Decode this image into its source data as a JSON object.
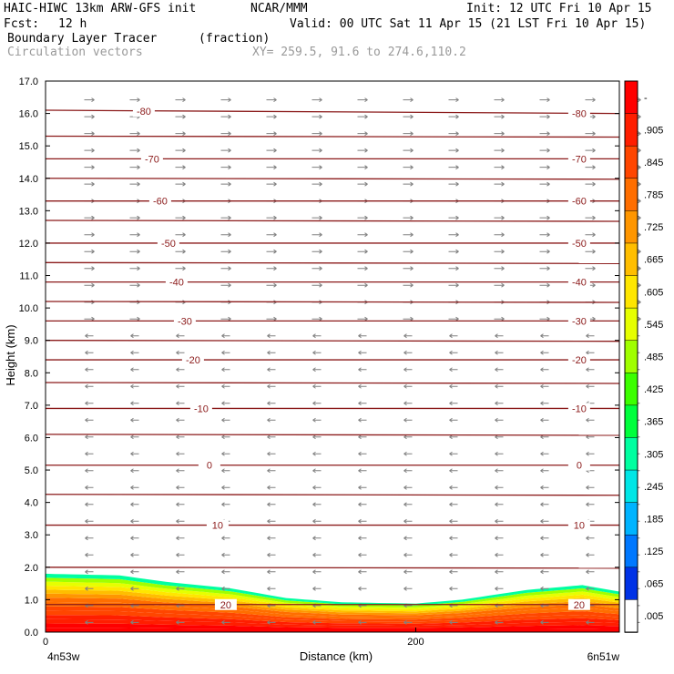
{
  "header": {
    "title_left": "HAIC-HIWC 13km ARW-GFS init",
    "org": "NCAR/MMM",
    "init": "Init: 12 UTC Fri 10 Apr 15",
    "fcst_label": "Fcst:",
    "fcst_value": "12 h",
    "valid": "Valid: 00 UTC Sat 11 Apr 15 (21 LST Fri 10 Apr 15)",
    "field_name": "Boundary Layer Tracer",
    "field_units": "(fraction)",
    "vector_label": "Circulation vectors",
    "xy_label": "XY= 259.5, 91.6 to 274.6,110.2"
  },
  "colors": {
    "contour": "#8b1a1a",
    "vector": "#808080",
    "dim_text": "#9a9a9a"
  },
  "chart_data": {
    "type": "heatmap",
    "xlabel": "Distance (km)",
    "ylabel": "Height (km)",
    "xlim": [
      0,
      310
    ],
    "ylim": [
      0,
      17
    ],
    "xticks": [
      0,
      200
    ],
    "yticks": [
      "0.0",
      "1.0",
      "2.0",
      "3.0",
      "4.0",
      "5.0",
      "6.0",
      "7.0",
      "8.0",
      "9.0",
      "10.0",
      "11.0",
      "12.0",
      "13.0",
      "14.0",
      "15.0",
      "16.0",
      "17.0"
    ],
    "x_endpoint_left": "4n53w",
    "x_endpoint_right": "6n51w",
    "colorbar": {
      "labels": [
        "-",
        ".905",
        ".845",
        ".785",
        ".725",
        ".665",
        ".605",
        ".545",
        ".485",
        ".425",
        ".365",
        ".305",
        ".245",
        ".185",
        ".125",
        ".065",
        ".005"
      ],
      "colors": [
        "#ff0000",
        "#ff1e00",
        "#ff4600",
        "#ff6e00",
        "#ff9600",
        "#ffbe00",
        "#ffe600",
        "#e6ff00",
        "#a0ff00",
        "#3cff00",
        "#00ff3c",
        "#00ffa0",
        "#00e6e6",
        "#00b4ff",
        "#0078ff",
        "#0032e6",
        "#ffffff"
      ]
    },
    "temperature_contours": [
      {
        "value": -80,
        "label": "-80",
        "heights": [
          16.1,
          16.0
        ]
      },
      {
        "value": -70,
        "label": "-70",
        "heights": [
          14.6,
          14.6
        ]
      },
      {
        "value": -60,
        "label": "-60",
        "heights": [
          13.3,
          13.3
        ]
      },
      {
        "value": -50,
        "label": "-50",
        "heights": [
          12.0,
          12.0
        ]
      },
      {
        "value": -40,
        "label": "-40",
        "heights": [
          10.8,
          10.8
        ]
      },
      {
        "value": -30,
        "label": "-30",
        "heights": [
          9.6,
          9.6
        ]
      },
      {
        "value": -20,
        "label": "-20",
        "heights": [
          8.4,
          8.4
        ]
      },
      {
        "value": -10,
        "label": "-10",
        "heights": [
          6.9,
          6.9
        ]
      },
      {
        "value": 0,
        "label": "0",
        "heights": [
          5.15,
          5.15
        ]
      },
      {
        "value": 10,
        "label": "10",
        "heights": [
          3.3,
          3.3
        ]
      },
      {
        "value": 20,
        "label": "20",
        "heights": [
          0.85,
          0.85
        ]
      }
    ],
    "unlabeled_contour_heights": [
      15.3,
      14.0,
      12.7,
      11.4,
      10.2,
      9.0,
      7.7,
      6.1,
      4.25,
      2.0
    ],
    "labeled_contour_levels": [
      "-80",
      "-70",
      "-60",
      "-50",
      "-40",
      "-30",
      "-20",
      "-10",
      "0",
      "10",
      "20"
    ],
    "boundary_layer_top_km": [
      {
        "x": 0,
        "top": 1.8
      },
      {
        "x": 40,
        "top": 1.75
      },
      {
        "x": 65,
        "top": 1.55
      },
      {
        "x": 100,
        "top": 1.35
      },
      {
        "x": 130,
        "top": 1.05
      },
      {
        "x": 160,
        "top": 0.92
      },
      {
        "x": 200,
        "top": 0.88
      },
      {
        "x": 225,
        "top": 1.0
      },
      {
        "x": 260,
        "top": 1.3
      },
      {
        "x": 290,
        "top": 1.45
      },
      {
        "x": 310,
        "top": 1.25
      }
    ],
    "vector_direction_upper": "east",
    "vector_direction_lower": "west"
  }
}
